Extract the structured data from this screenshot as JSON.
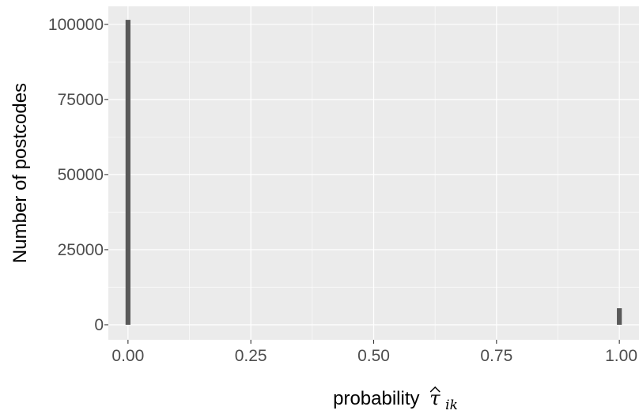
{
  "chart_data": {
    "type": "bar",
    "xlabel": "probability",
    "xlabel_symbol": "τ",
    "xlabel_subscript": "ik",
    "ylabel": "Number of postcodes",
    "xlim": [
      -0.04,
      1.04
    ],
    "ylim": [
      -5000,
      106000
    ],
    "x_ticks": [
      0.0,
      0.25,
      0.5,
      0.75,
      1.0
    ],
    "x_tick_labels": [
      "0.00",
      "0.25",
      "0.50",
      "0.75",
      "1.00"
    ],
    "y_ticks": [
      0,
      25000,
      50000,
      75000,
      100000
    ],
    "y_tick_labels": [
      "0",
      "25000",
      "50000",
      "75000",
      "100000"
    ],
    "bin_width": 0.01,
    "bars": [
      {
        "x": 0.0,
        "value": 101500
      },
      {
        "x": 1.0,
        "value": 5500
      }
    ],
    "grid": true,
    "panel_background": "#ebebeb",
    "bar_color": "#595959"
  }
}
